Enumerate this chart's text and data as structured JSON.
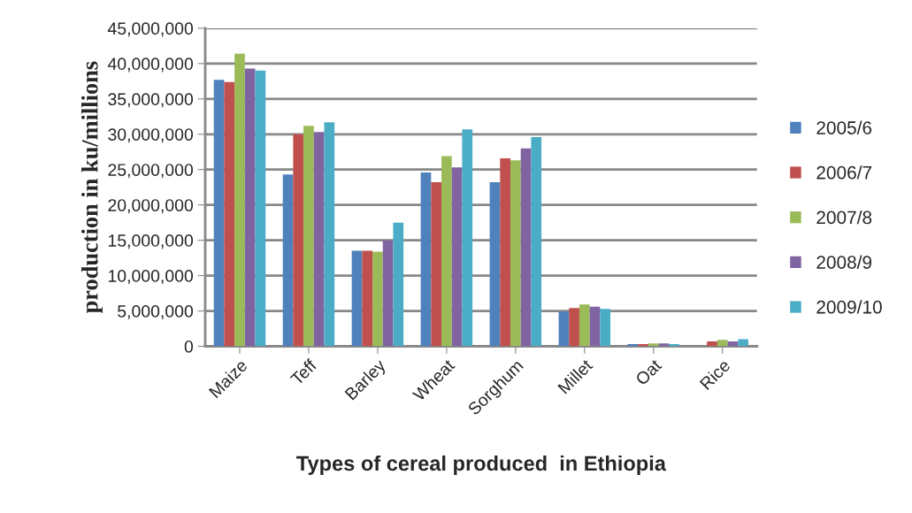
{
  "chart_data": {
    "type": "bar",
    "xlabel": "Types of cereal produced  in Ethiopia",
    "ylabel": "production in ku/millions",
    "categories": [
      "Maize",
      "Teff",
      "Barley",
      "Wheat",
      "Sorghum",
      "Millet",
      "Oat",
      "Rice"
    ],
    "series": [
      {
        "name": "2005/6",
        "color": "#4f81bd",
        "values": [
          37700000,
          24300000,
          13500000,
          24600000,
          23200000,
          4900000,
          300000,
          null
        ]
      },
      {
        "name": "2006/7",
        "color": "#c0504d",
        "values": [
          37400000,
          30000000,
          13500000,
          23200000,
          26600000,
          5400000,
          300000,
          700000
        ]
      },
      {
        "name": "2007/8",
        "color": "#9bbb59",
        "values": [
          41400000,
          31200000,
          13400000,
          26900000,
          26300000,
          5900000,
          400000,
          900000
        ]
      },
      {
        "name": "2008/9",
        "color": "#8064a2",
        "values": [
          39300000,
          30300000,
          15000000,
          25300000,
          28000000,
          5600000,
          400000,
          700000
        ]
      },
      {
        "name": "2009/10",
        "color": "#4bacc6",
        "values": [
          39000000,
          31700000,
          17500000,
          30700000,
          29600000,
          5300000,
          300000,
          1000000
        ]
      }
    ],
    "ylim": [
      0,
      45000000
    ],
    "yticks": [
      {
        "value": 0,
        "label": "0"
      },
      {
        "value": 5000000,
        "label": "5,000,000"
      },
      {
        "value": 10000000,
        "label": "10,000,000"
      },
      {
        "value": 15000000,
        "label": "15,000,000"
      },
      {
        "value": 20000000,
        "label": "20,000,000"
      },
      {
        "value": 25000000,
        "label": "25,000,000"
      },
      {
        "value": 30000000,
        "label": "30,000,000"
      },
      {
        "value": 35000000,
        "label": "35,000,000"
      },
      {
        "value": 40000000,
        "label": "40,000,000"
      },
      {
        "value": 45000000,
        "label": "45,000,000"
      }
    ],
    "grid": "y",
    "legend": "right"
  }
}
